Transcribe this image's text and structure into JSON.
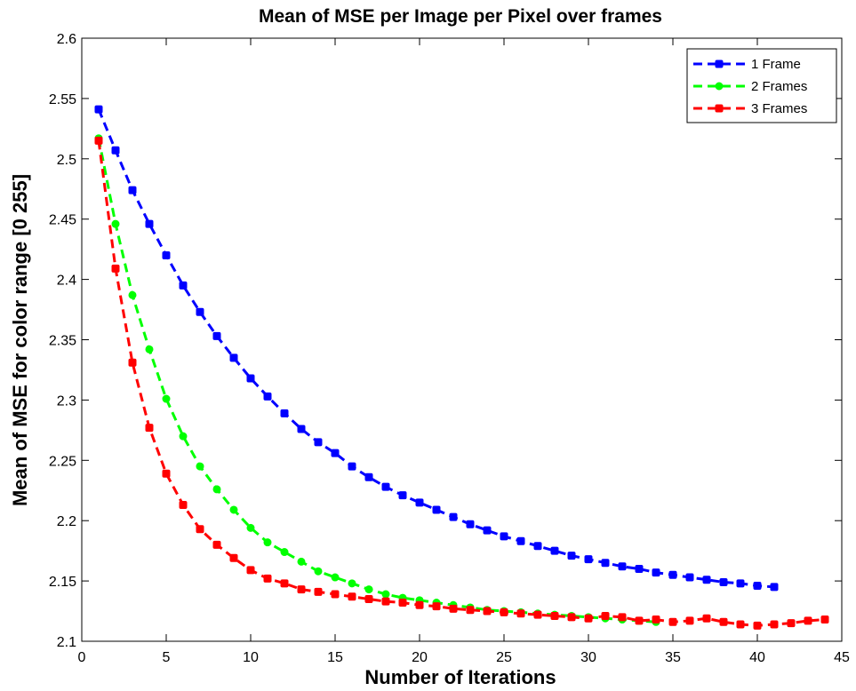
{
  "chart_data": {
    "type": "line",
    "title": "Mean of MSE per Image per Pixel over frames",
    "xlabel": "Number of Iterations",
    "ylabel": "Mean of MSE for color range [0 255]",
    "xlim": [
      0,
      45
    ],
    "ylim": [
      2.1,
      2.6
    ],
    "xticks": [
      "0",
      "5",
      "10",
      "15",
      "20",
      "25",
      "30",
      "35",
      "40",
      "45"
    ],
    "yticks": [
      "2.1",
      "2.15",
      "2.2",
      "2.25",
      "2.3",
      "2.35",
      "2.4",
      "2.45",
      "2.5",
      "2.55",
      "2.6"
    ],
    "grid": false,
    "legend_position": "top-right",
    "series": [
      {
        "name": "1 Frame",
        "color": "#0000ff",
        "line_style": "dashed",
        "marker": "square",
        "x": [
          1,
          2,
          3,
          4,
          5,
          6,
          7,
          8,
          9,
          10,
          11,
          12,
          13,
          14,
          15,
          16,
          17,
          18,
          19,
          20,
          21,
          22,
          23,
          24,
          25,
          26,
          27,
          28,
          29,
          30,
          31,
          32,
          33,
          34,
          35,
          36,
          37,
          38,
          39,
          40,
          41
        ],
        "y": [
          2.541,
          2.507,
          2.474,
          2.446,
          2.42,
          2.395,
          2.373,
          2.353,
          2.335,
          2.318,
          2.303,
          2.289,
          2.276,
          2.265,
          2.256,
          2.245,
          2.236,
          2.228,
          2.221,
          2.215,
          2.209,
          2.203,
          2.197,
          2.192,
          2.187,
          2.183,
          2.179,
          2.175,
          2.171,
          2.168,
          2.165,
          2.162,
          2.16,
          2.157,
          2.155,
          2.153,
          2.151,
          2.149,
          2.148,
          2.146,
          2.145
        ]
      },
      {
        "name": "2 Frames",
        "color": "#00ff00",
        "line_style": "dashed",
        "marker": "circle",
        "x": [
          1,
          2,
          3,
          4,
          5,
          6,
          7,
          8,
          9,
          10,
          11,
          12,
          13,
          14,
          15,
          16,
          17,
          18,
          19,
          20,
          21,
          22,
          23,
          24,
          25,
          26,
          27,
          28,
          29,
          30,
          31,
          32,
          33,
          34
        ],
        "y": [
          2.517,
          2.446,
          2.387,
          2.342,
          2.301,
          2.27,
          2.245,
          2.226,
          2.209,
          2.194,
          2.182,
          2.174,
          2.166,
          2.158,
          2.153,
          2.148,
          2.143,
          2.139,
          2.136,
          2.134,
          2.132,
          2.13,
          2.128,
          2.126,
          2.125,
          2.124,
          2.123,
          2.122,
          2.121,
          2.12,
          2.119,
          2.118,
          2.117,
          2.116
        ]
      },
      {
        "name": "3 Frames",
        "color": "#ff0000",
        "line_style": "dashed",
        "marker": "square",
        "x": [
          1,
          2,
          3,
          4,
          5,
          6,
          7,
          8,
          9,
          10,
          11,
          12,
          13,
          14,
          15,
          16,
          17,
          18,
          19,
          20,
          21,
          22,
          23,
          24,
          25,
          26,
          27,
          28,
          29,
          30,
          31,
          32,
          33,
          34,
          35,
          36,
          37,
          38,
          39,
          40,
          41,
          42,
          43,
          44
        ],
        "y": [
          2.515,
          2.409,
          2.331,
          2.277,
          2.239,
          2.213,
          2.193,
          2.18,
          2.169,
          2.159,
          2.152,
          2.148,
          2.143,
          2.141,
          2.139,
          2.137,
          2.135,
          2.133,
          2.132,
          2.13,
          2.129,
          2.127,
          2.126,
          2.125,
          2.124,
          2.123,
          2.122,
          2.121,
          2.12,
          2.119,
          2.121,
          2.12,
          2.117,
          2.118,
          2.116,
          2.117,
          2.119,
          2.116,
          2.114,
          2.113,
          2.114,
          2.115,
          2.117,
          2.118
        ]
      }
    ]
  }
}
